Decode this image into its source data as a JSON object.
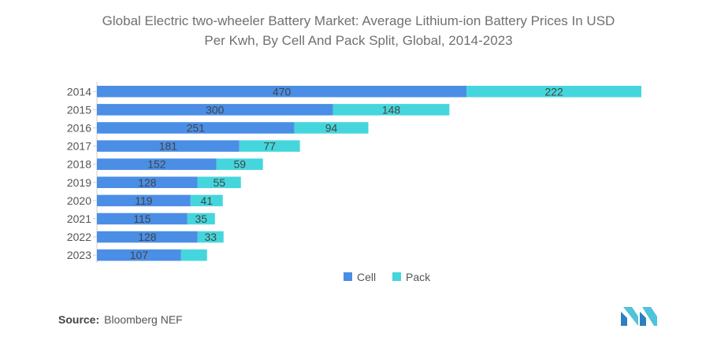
{
  "title_line1": "Global Electric two-wheeler Battery Market: Average Lithium-ion Battery Prices In USD",
  "title_line2": "Per Kwh, By Cell And Pack Split, Global, 2014-2023",
  "source_label": "Source:",
  "source_text": "Bloomberg NEF",
  "chart_data": {
    "type": "bar",
    "orientation": "horizontal",
    "stacked": true,
    "categories": [
      "2014",
      "2015",
      "2016",
      "2017",
      "2018",
      "2019",
      "2020",
      "2021",
      "2022",
      "2023"
    ],
    "series": [
      {
        "name": "Cell",
        "color": "#4a8ee6",
        "values": [
          470,
          300,
          251,
          181,
          152,
          128,
          119,
          115,
          128,
          107
        ],
        "labels": [
          "470",
          "300",
          "251",
          "181",
          "152",
          "128",
          "119",
          "115",
          "128",
          "107"
        ]
      },
      {
        "name": "Pack",
        "color": "#45d6dd",
        "values": [
          222,
          148,
          94,
          77,
          59,
          55,
          41,
          35,
          33,
          33
        ],
        "labels": [
          "222",
          "148",
          "94",
          "77",
          "59",
          "55",
          "41",
          "35",
          "33",
          ""
        ]
      }
    ],
    "xlim": [
      0,
      692
    ],
    "grid": false,
    "legend": "bottom-center"
  }
}
